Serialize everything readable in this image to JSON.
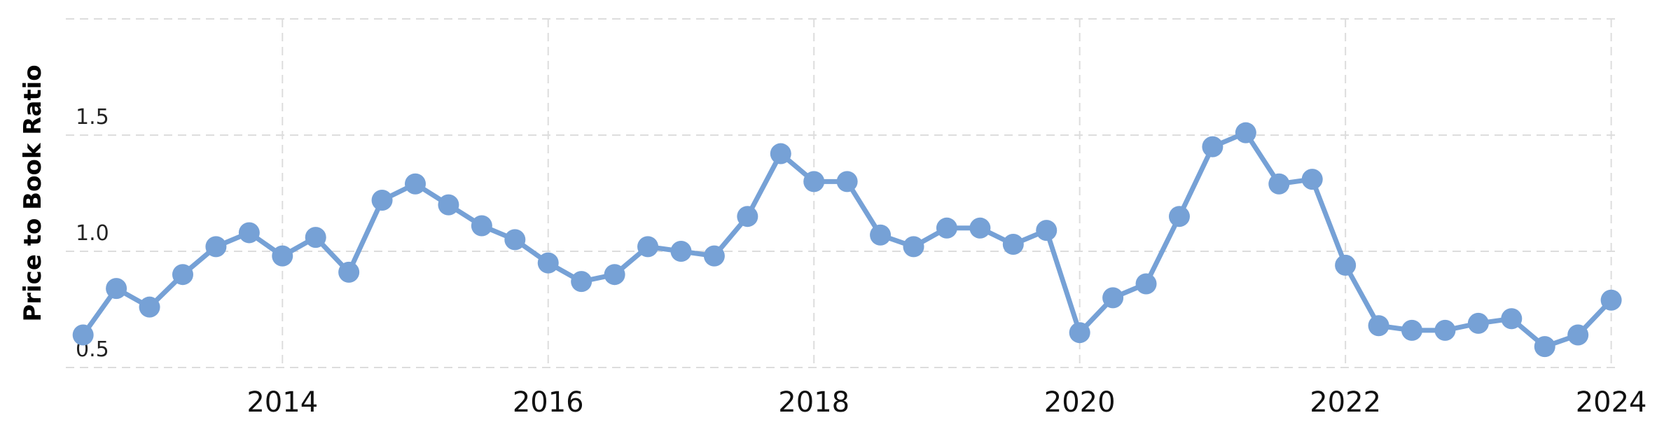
{
  "chart_data": {
    "type": "line",
    "y_label": "Price to Book Ratio",
    "x": [
      2012.5,
      2012.75,
      2013.0,
      2013.25,
      2013.5,
      2013.75,
      2014.0,
      2014.25,
      2014.5,
      2014.75,
      2015.0,
      2015.25,
      2015.5,
      2015.75,
      2016.0,
      2016.25,
      2016.5,
      2016.75,
      2017.0,
      2017.25,
      2017.5,
      2017.75,
      2018.0,
      2018.25,
      2018.5,
      2018.75,
      2019.0,
      2019.25,
      2019.5,
      2019.75,
      2020.0,
      2020.25,
      2020.5,
      2020.75,
      2021.0,
      2021.25,
      2021.5,
      2021.75,
      2022.0,
      2022.25,
      2022.5,
      2022.75,
      2023.0,
      2023.25,
      2023.5,
      2023.75,
      2024.0
    ],
    "series": [
      {
        "name": "Price to Book Ratio",
        "color": "#76a1d6",
        "values": [
          0.64,
          0.84,
          0.76,
          0.9,
          1.02,
          1.08,
          0.98,
          1.06,
          0.91,
          1.22,
          1.29,
          1.2,
          1.11,
          1.05,
          0.95,
          0.87,
          0.9,
          1.02,
          1.0,
          0.98,
          1.15,
          1.42,
          1.3,
          1.3,
          1.07,
          1.02,
          1.1,
          1.1,
          1.03,
          1.09,
          0.65,
          0.8,
          0.86,
          1.15,
          1.45,
          1.51,
          1.29,
          1.31,
          0.94,
          0.68,
          0.66,
          0.66,
          0.69,
          0.71,
          0.59,
          0.64,
          0.79
        ]
      }
    ],
    "xlim": [
      2012.37,
      2024.06
    ],
    "xticks": [
      2014,
      2016,
      2018,
      2020,
      2022,
      2024
    ],
    "ylim": [
      0.5,
      2.0
    ],
    "yticks": [
      0.5,
      {
        "value": 1.0,
        "label": "1.0"
      },
      1.5
    ],
    "grid": true
  }
}
